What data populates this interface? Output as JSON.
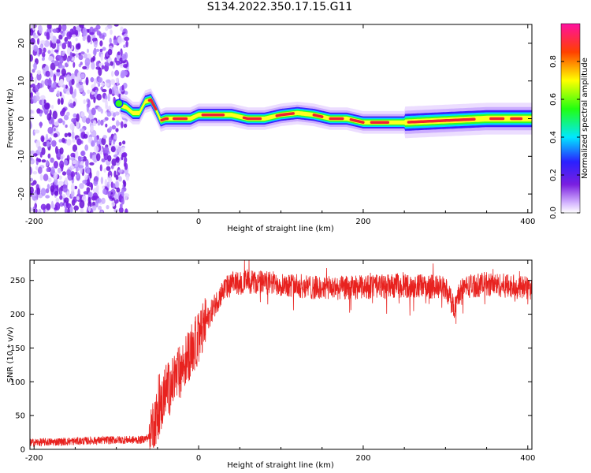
{
  "title": "S134.2022.350.17.15.G11",
  "colors": {
    "snr_line": "#e8221f",
    "axis": "#000000"
  },
  "chart_data": [
    {
      "type": "heatmap",
      "xlabel": "Height of straight line (km)",
      "ylabel": "Frequency (Hz)",
      "xlim": [
        -205,
        405
      ],
      "ylim": [
        -25,
        25
      ],
      "xticks": [
        -200,
        0,
        200,
        400
      ],
      "yticks": [
        -20,
        -10,
        0,
        10,
        20
      ],
      "colorbar": {
        "label": "Normalized spectral amplitude",
        "range": [
          0,
          1
        ],
        "ticks": [
          0.0,
          0.2,
          0.4,
          0.6,
          0.8
        ]
      },
      "ridge_frequency": {
        "x": [
          -95,
          -88,
          -80,
          -72,
          -65,
          -58,
          -52,
          -46,
          -40,
          -30,
          -10,
          0,
          20,
          40,
          60,
          80,
          100,
          120,
          140,
          160,
          180,
          200,
          250,
          300,
          350,
          405
        ],
        "y": [
          3.5,
          3.0,
          1.5,
          1.5,
          4.5,
          5.0,
          2.5,
          -0.5,
          0.0,
          0.0,
          0.0,
          1.0,
          1.0,
          1.0,
          0.0,
          0.0,
          1.0,
          1.5,
          1.0,
          0.0,
          0.0,
          -1.0,
          -1.0,
          -0.5,
          0.0,
          0.0
        ]
      },
      "noise_region_x": [
        -205,
        -92
      ]
    },
    {
      "type": "line",
      "xlabel": "Height of straight line (km)",
      "ylabel": "SNR (10 * v/v)",
      "xlim": [
        -205,
        405
      ],
      "ylim": [
        0,
        280
      ],
      "xticks": [
        -200,
        0,
        200,
        400
      ],
      "yticks": [
        0,
        50,
        100,
        150,
        200,
        250
      ],
      "series": [
        {
          "x": [
            -205,
            -150,
            -100,
            -70,
            -60,
            -55,
            -50,
            -45,
            -40,
            -35,
            -30,
            -25,
            -20,
            -10,
            0,
            10,
            20,
            30,
            40,
            60,
            100,
            150,
            200,
            250,
            300,
            310,
            320,
            350,
            405
          ],
          "values": [
            10,
            12,
            14,
            14,
            18,
            40,
            50,
            65,
            90,
            90,
            100,
            110,
            120,
            145,
            165,
            190,
            215,
            235,
            245,
            248,
            245,
            238,
            240,
            242,
            240,
            210,
            240,
            245,
            238
          ]
        }
      ]
    }
  ]
}
